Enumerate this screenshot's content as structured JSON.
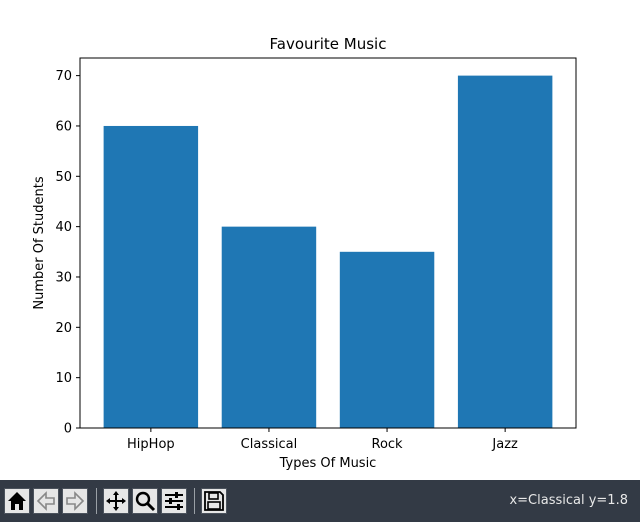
{
  "chart_data": {
    "type": "bar",
    "title": "Favourite Music",
    "xlabel": "Types Of Music",
    "ylabel": "Number Of Students",
    "categories": [
      "HipHop",
      "Classical",
      "Rock",
      "Jazz"
    ],
    "values": [
      60,
      40,
      35,
      70
    ],
    "ylim": [
      0,
      73.5
    ],
    "yticks": [
      "0",
      "10",
      "20",
      "30",
      "40",
      "50",
      "60",
      "70"
    ],
    "grid": false,
    "bar_color": "#1f77b4"
  },
  "toolbar": {
    "buttons": [
      {
        "name": "home-button",
        "icon": "home-icon"
      },
      {
        "name": "back-button",
        "icon": "back-arrow-icon"
      },
      {
        "name": "forward-button",
        "icon": "forward-arrow-icon"
      },
      {
        "name": "pan-button",
        "icon": "move-icon"
      },
      {
        "name": "zoom-button",
        "icon": "magnifier-icon"
      },
      {
        "name": "configure-subplots-button",
        "icon": "sliders-icon"
      },
      {
        "name": "save-button",
        "icon": "floppy-disk-icon"
      }
    ],
    "status_text": "x=Classical y=1.8"
  }
}
